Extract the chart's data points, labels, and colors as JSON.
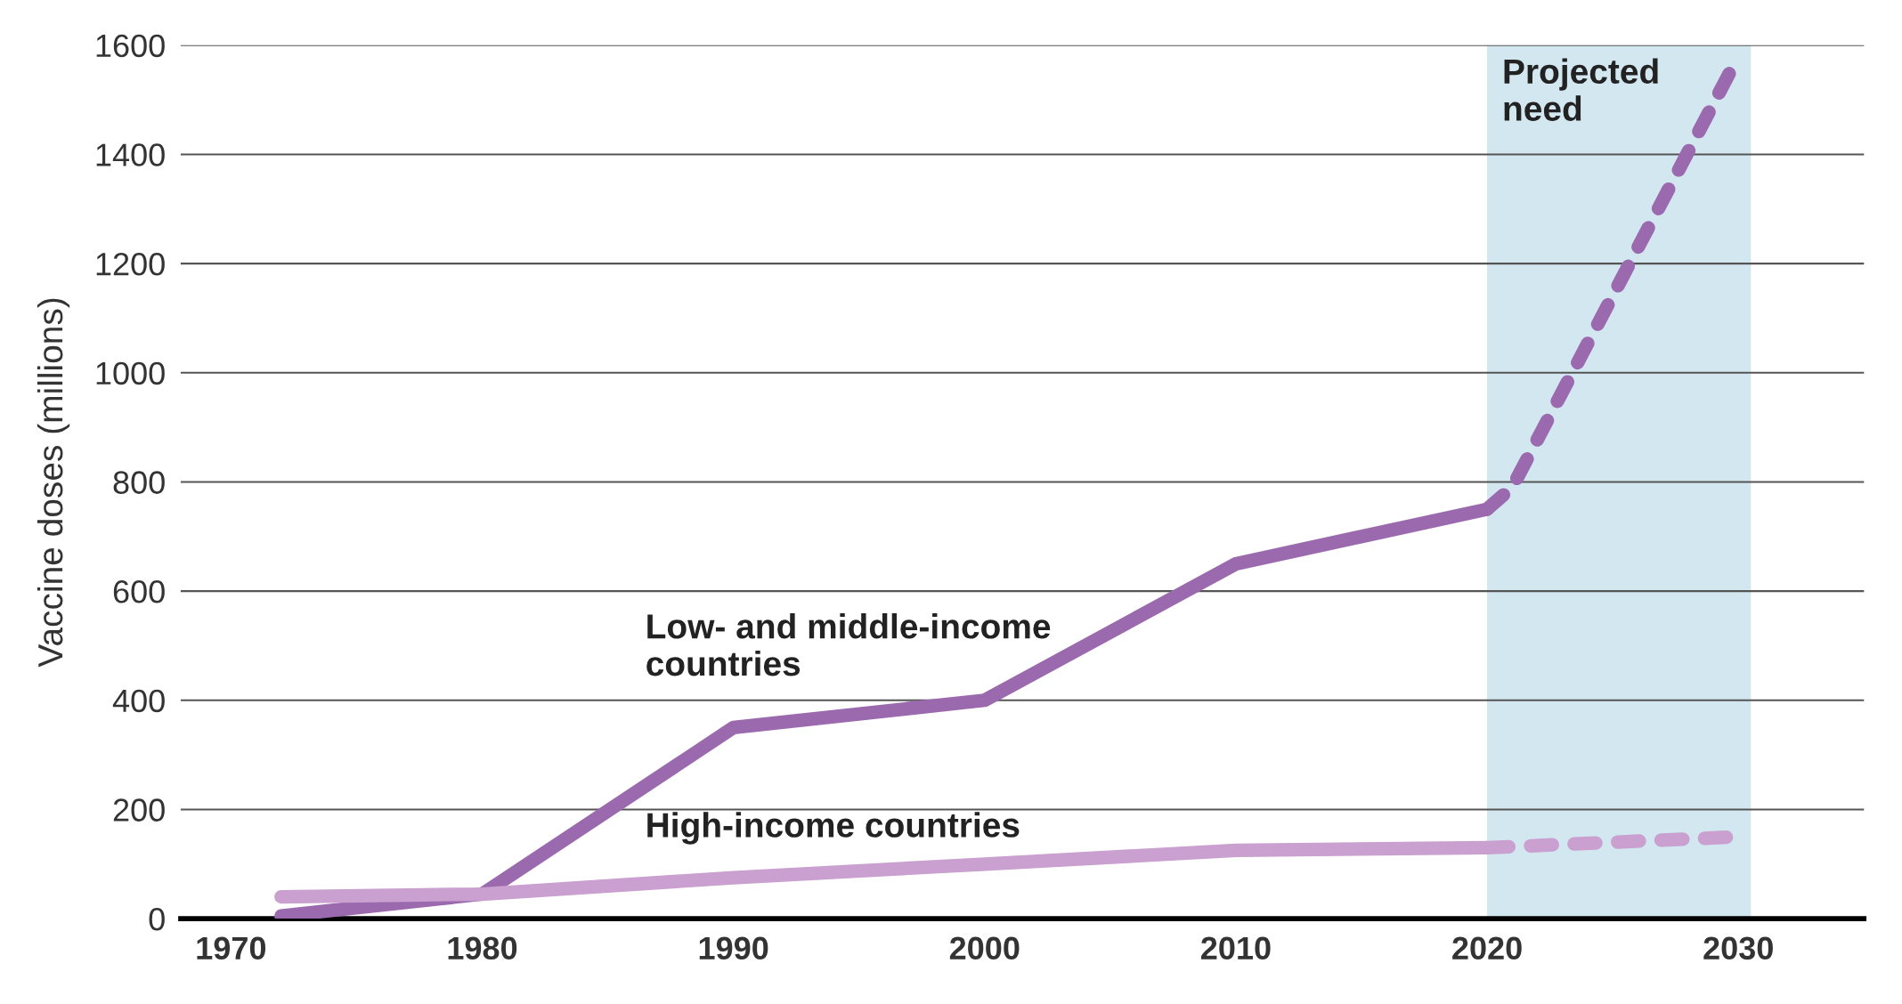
{
  "chart_data": {
    "type": "line",
    "ylabel": "Vaccine doses (millions)",
    "series": [
      {
        "name": "Low- and middle-income\ncountries",
        "color": "#9b6aae",
        "line_style": "solid",
        "x": [
          1972,
          1980,
          1990,
          2000,
          2010,
          2020
        ],
        "values": [
          5,
          45,
          350,
          400,
          650,
          750
        ]
      },
      {
        "color": "#9b6aae",
        "line_style": "dashed",
        "x": [
          2020,
          2021,
          2030
        ],
        "values": [
          750,
          790,
          1580
        ]
      },
      {
        "name": "High-income countries",
        "color": "#c9a0cf",
        "line_style": "solid",
        "x": [
          1972,
          1980,
          1990,
          2000,
          2010,
          2020
        ],
        "values": [
          40,
          45,
          75,
          100,
          125,
          130
        ]
      },
      {
        "color": "#c9a0cf",
        "line_style": "dashed",
        "x": [
          2020,
          2030
        ],
        "values": [
          130,
          150
        ]
      }
    ],
    "xlim": [
      1968,
      2035
    ],
    "xticks": [
      1970,
      1980,
      1990,
      2000,
      2010,
      2020,
      2030
    ],
    "ylim": [
      0,
      1600
    ],
    "yticks": [
      0,
      200,
      400,
      600,
      800,
      1000,
      1200,
      1400,
      1600
    ],
    "bands": [
      {
        "axis": "x",
        "from": 2020,
        "to": 2030.5,
        "label": "Projected\nneed",
        "color": "#d3e7f1"
      }
    ],
    "grid": "y",
    "legend": false
  }
}
